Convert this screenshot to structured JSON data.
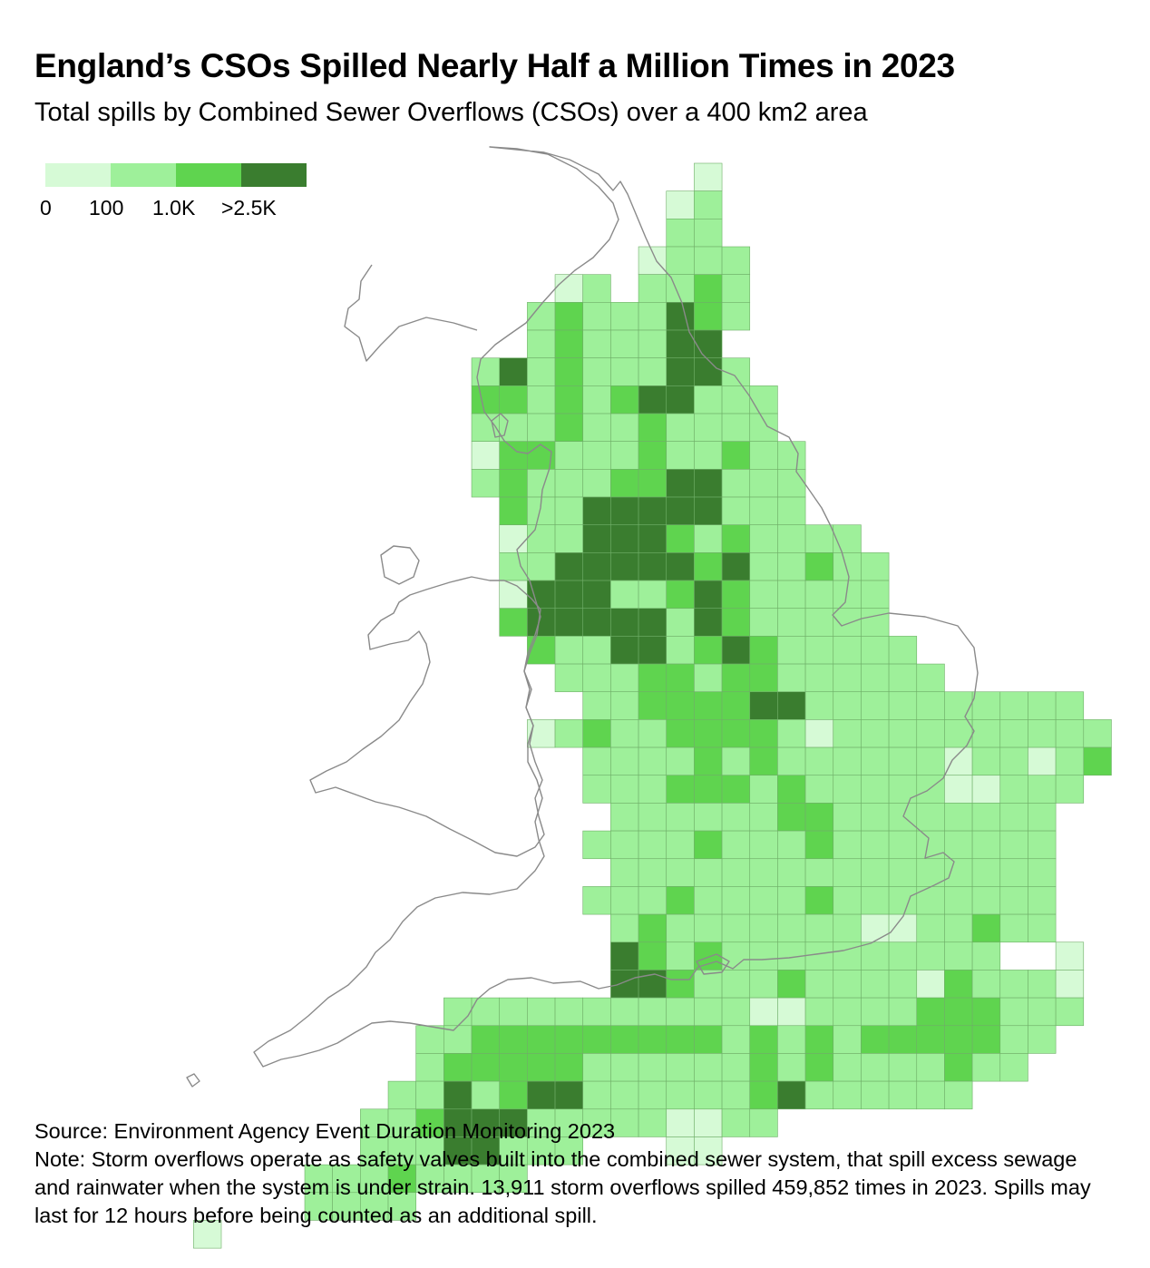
{
  "title": "England’s CSOs Spilled Nearly Half a Million Times in 2023",
  "subtitle": "Total spills by Combined Sewer Overflows (CSOs) over a 400 km2 area",
  "legend": {
    "colors": [
      "#d6fad6",
      "#9ef09a",
      "#5fd44f",
      "#3a7d2f"
    ],
    "labels": [
      "0",
      "100",
      "1.0K",
      ">2.5K"
    ]
  },
  "source": "Source: Environment Agency Event Duration Monitoring 2023",
  "note": "Note: Storm overflows operate as safety valves built into the combined sewer system, that spill excess sewage and rainwater when the system is under strain. 13,911 storm overflows spilled 459,852 times in 2023. Spills may last for 12 hours before being counted as an additional spill.",
  "map": {
    "grid_rows": [
      "....................l...............",
      "...................lm...............",
      "...................mm...............",
      "..................lmmm..............",
      "...............lm.mmgm..............",
      "..............mgmmmdgm..............",
      "..............mgmmmdd...............",
      "............mdmgmmmddm..............",
      "............ggmgmgddmmm.............",
      "............mmmgmmgmmmm.............",
      "............lggmmmgmmgmm............",
      "............mgmmmggddmmm............",
      ".............gmmdddddmmm............",
      ".............lmmdddgmgmmmm..........",
      ".............mmdddddgdmmgmm.........",
      ".............ldddmmgdgmmmmm.........",
      ".............gdddddmdgmmmmm.........",
      "..............gmmddmgdgmmmmm........",
      "...............mmmggmggmmmmmm.......",
      "................mmggggddmmmmmmmmmm..",
      "..............lmgmmggggmlmmmmmmmmmm.",
      "................mmmmgmgmmmmmmlmmlmg.",
      "................mmmgggmgmmmmmllmmm..",
      ".................mmmmmmggmmmmmmmm...",
      "................mmmmgmmmgmmmmmmmm...",
      ".................mmmmmmmmmmmmmmmm...",
      "................mmmgmmmmgmmmmmmmm...",
      ".................mgmmmmmmmllmmgmm...",
      ".................dgmgmmmmmmmmmm..l..",
      ".................ddgmmmgmmmmlgmmml..",
      "...........mmmmmmmmmmmllmmmmgggmmm..",
      "..........mmgggggggggmgmgmgggggmm...",
      "..........mgggggmmmmmmgmgmmmmgmm....",
      ".........mmdmgddmmmmmmgdmmmmmm......",
      "........mmgdddmmmmmllmm.............",
      "........mmmddmmm...ll...............",
      "......mmmgmmmm......................",
      "......mmmm..........................",
      "..l................................."
    ],
    "color_key": {
      "l": "#d6fad6",
      "m": "#9ef09a",
      "g": "#5fd44f",
      "d": "#3a7d2f"
    },
    "grid_stroke_color": "#6fae68",
    "coastline_color": "#8a8a8a"
  }
}
